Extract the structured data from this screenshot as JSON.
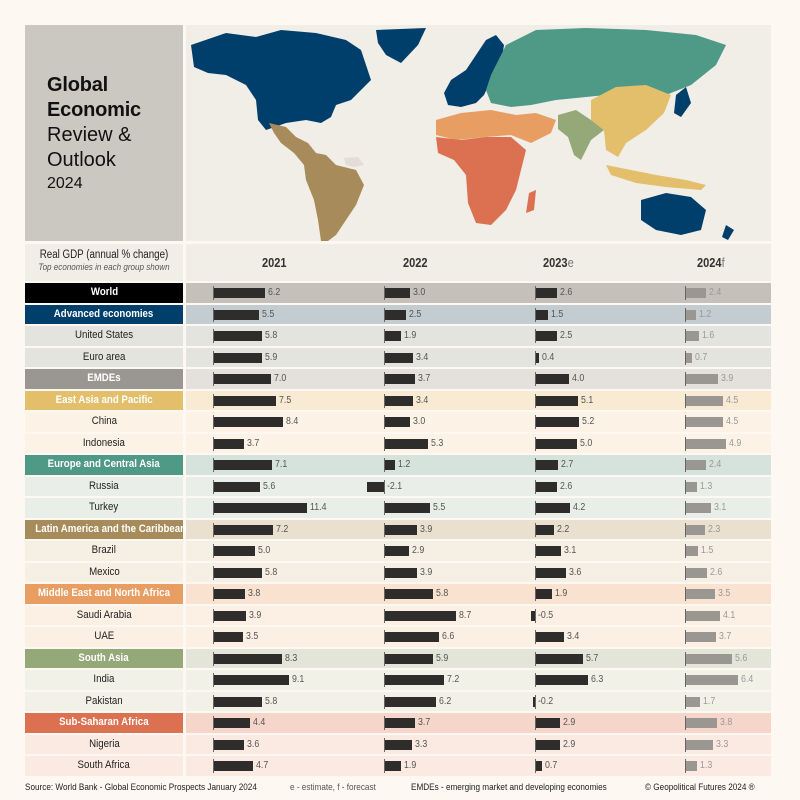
{
  "title": {
    "line1": "Global",
    "line2": "Economic",
    "line3": "Review &",
    "line4": "Outlook",
    "year": "2024"
  },
  "map": {
    "description": "World map colored by region group",
    "legend_colors": {
      "advanced_economies": "#003f6b",
      "europe_central_asia": "#4f9987",
      "east_asia_pacific": "#e3bf6c",
      "latin_america_caribbean": "#a88b5a",
      "middle_east_north_africa": "#e89d63",
      "south_asia": "#95a878",
      "sub_saharan_africa": "#dc7152",
      "no_data": "#e2ddd6",
      "ocean": "#f1ede7"
    }
  },
  "header": {
    "label_line1": "Real GDP (annual % change)",
    "label_line2": "Top economies in each group shown",
    "years": [
      {
        "year": "2021",
        "suffix": ""
      },
      {
        "year": "2022",
        "suffix": ""
      },
      {
        "year": "2023",
        "suffix": "e"
      },
      {
        "year": "2024",
        "suffix": "f"
      }
    ]
  },
  "chart_data": {
    "type": "bar",
    "title": "Global Economic Review & Outlook 2024",
    "subtitle": "Real GDP (annual % change) - Top economies in each group shown",
    "xlabel": "",
    "ylabel": "Real GDP (annual % change)",
    "categories": [
      "World",
      "Advanced economies",
      "United States",
      "Euro area",
      "EMDEs",
      "East Asia and Pacific",
      "China",
      "Indonesia",
      "Europe and Central Asia",
      "Russia",
      "Turkey",
      "Latin America and the Caribbean",
      "Brazil",
      "Mexico",
      "Middle East and North Africa",
      "Saudi Arabia",
      "UAE",
      "South Asia",
      "India",
      "Pakistan",
      "Sub-Saharan Africa",
      "Nigeria",
      "South Africa"
    ],
    "series": [
      {
        "name": "2021",
        "values": [
          6.2,
          5.5,
          5.8,
          5.9,
          7.0,
          7.5,
          8.4,
          3.7,
          7.1,
          5.6,
          11.4,
          7.2,
          5.0,
          5.8,
          3.8,
          3.9,
          3.5,
          8.3,
          9.1,
          5.8,
          4.4,
          3.6,
          4.7
        ]
      },
      {
        "name": "2022",
        "values": [
          3.0,
          2.5,
          1.9,
          3.4,
          3.7,
          3.4,
          3.0,
          5.3,
          1.2,
          -2.1,
          5.5,
          3.9,
          2.9,
          3.9,
          5.8,
          8.7,
          6.6,
          5.9,
          7.2,
          6.2,
          3.7,
          3.3,
          1.9
        ]
      },
      {
        "name": "2023e",
        "values": [
          2.6,
          1.5,
          2.5,
          0.4,
          4.0,
          5.1,
          5.2,
          5.0,
          2.7,
          2.6,
          4.2,
          2.2,
          3.1,
          3.6,
          1.9,
          -0.5,
          3.4,
          5.7,
          6.3,
          -0.2,
          2.9,
          2.9,
          0.7
        ]
      },
      {
        "name": "2024f",
        "values": [
          2.4,
          1.2,
          1.6,
          0.7,
          3.9,
          4.5,
          4.5,
          4.9,
          2.4,
          1.3,
          3.1,
          2.3,
          1.5,
          2.6,
          3.5,
          4.1,
          3.7,
          5.6,
          6.4,
          1.7,
          3.8,
          3.3,
          1.3
        ]
      }
    ],
    "legend": [
      "2021",
      "2022",
      "2023e (estimate)",
      "2024f (forecast)"
    ],
    "grid": false
  },
  "rows": [
    {
      "name": "World",
      "group": true,
      "label_bg": "#000000",
      "row_bg": "#c5c1ba",
      "values": [
        "6.2",
        "3.0",
        "2.6",
        "2.4"
      ]
    },
    {
      "name": "Advanced economies",
      "group": true,
      "label_bg": "#003f6b",
      "row_bg": "#c3ccd0",
      "values": [
        "5.5",
        "2.5",
        "1.5",
        "1.2"
      ]
    },
    {
      "name": "United States",
      "group": false,
      "label_bg": "#e3e3df",
      "row_bg": "#e3e3df",
      "values": [
        "5.8",
        "1.9",
        "2.5",
        "1.6"
      ]
    },
    {
      "name": "Euro area",
      "group": false,
      "label_bg": "#e3e3df",
      "row_bg": "#e3e3df",
      "values": [
        "5.9",
        "3.4",
        "0.4",
        "0.7"
      ]
    },
    {
      "name": "EMDEs",
      "group": true,
      "label_bg": "#9a9792",
      "row_bg": "#e4e0db",
      "values": [
        "7.0",
        "3.7",
        "4.0",
        "3.9"
      ]
    },
    {
      "name": "East Asia and Pacific",
      "group": true,
      "label_bg": "#e3bf6c",
      "row_bg": "#f8ead3",
      "values": [
        "7.5",
        "3.4",
        "5.1",
        "4.5"
      ]
    },
    {
      "name": "China",
      "group": false,
      "label_bg": "#fcf3e6",
      "row_bg": "#fcf3e6",
      "values": [
        "8.4",
        "3.0",
        "5.2",
        "4.5"
      ]
    },
    {
      "name": "Indonesia",
      "group": false,
      "label_bg": "#fcf3e6",
      "row_bg": "#fcf3e6",
      "values": [
        "3.7",
        "5.3",
        "5.0",
        "4.9"
      ]
    },
    {
      "name": "Europe and Central Asia",
      "group": true,
      "label_bg": "#4f9987",
      "row_bg": "#d6e2dc",
      "values": [
        "7.1",
        "1.2",
        "2.7",
        "2.4"
      ]
    },
    {
      "name": "Russia",
      "group": false,
      "label_bg": "#eaeee8",
      "row_bg": "#eaeee8",
      "values": [
        "5.6",
        "-2.1",
        "2.6",
        "1.3"
      ]
    },
    {
      "name": "Turkey",
      "group": false,
      "label_bg": "#eaeee8",
      "row_bg": "#eaeee8",
      "values": [
        "11.4",
        "5.5",
        "4.2",
        "3.1"
      ]
    },
    {
      "name": "Latin America and the Caribbean",
      "group": true,
      "label_bg": "#a88b5a",
      "row_bg": "#e9e0cf",
      "values": [
        "7.2",
        "3.9",
        "2.2",
        "2.3"
      ]
    },
    {
      "name": "Brazil",
      "group": false,
      "label_bg": "#f5efe4",
      "row_bg": "#f5efe4",
      "values": [
        "5.0",
        "2.9",
        "3.1",
        "1.5"
      ]
    },
    {
      "name": "Mexico",
      "group": false,
      "label_bg": "#f5efe4",
      "row_bg": "#f5efe4",
      "values": [
        "5.8",
        "3.9",
        "3.6",
        "2.6"
      ]
    },
    {
      "name": "Middle East and North Africa",
      "group": true,
      "label_bg": "#e89d63",
      "row_bg": "#f9e2cf",
      "values": [
        "3.8",
        "5.8",
        "1.9",
        "3.5"
      ]
    },
    {
      "name": "Saudi Arabia",
      "group": false,
      "label_bg": "#fcefe4",
      "row_bg": "#fcefe4",
      "values": [
        "3.9",
        "8.7",
        "-0.5",
        "4.1"
      ]
    },
    {
      "name": "UAE",
      "group": false,
      "label_bg": "#fcefe4",
      "row_bg": "#fcefe4",
      "values": [
        "3.5",
        "6.6",
        "3.4",
        "3.7"
      ]
    },
    {
      "name": "South Asia",
      "group": true,
      "label_bg": "#95a878",
      "row_bg": "#e3e5d8",
      "values": [
        "8.3",
        "5.9",
        "5.7",
        "5.6"
      ]
    },
    {
      "name": "India",
      "group": false,
      "label_bg": "#f2f1e7",
      "row_bg": "#f2f1e7",
      "values": [
        "9.1",
        "7.2",
        "6.3",
        "6.4"
      ]
    },
    {
      "name": "Pakistan",
      "group": false,
      "label_bg": "#f2f1e7",
      "row_bg": "#f2f1e7",
      "values": [
        "5.8",
        "6.2",
        "-0.2",
        "1.7"
      ]
    },
    {
      "name": "Sub-Saharan Africa",
      "group": true,
      "label_bg": "#dc7152",
      "row_bg": "#f6d6ca",
      "values": [
        "4.4",
        "3.7",
        "2.9",
        "3.8"
      ]
    },
    {
      "name": "Nigeria",
      "group": false,
      "label_bg": "#faeae2",
      "row_bg": "#faeae2",
      "values": [
        "3.6",
        "3.3",
        "2.9",
        "3.3"
      ]
    },
    {
      "name": "South Africa",
      "group": false,
      "label_bg": "#faeae2",
      "row_bg": "#faeae2",
      "values": [
        "4.7",
        "1.9",
        "0.7",
        "1.3"
      ]
    }
  ],
  "footer": {
    "source": "Source: World Bank - Global Economic Prospects January 2024",
    "note": "e - estimate, f - forecast",
    "abbrev": "EMDEs - emerging market and developing economies",
    "copyright": "© Geopolitical Futures 2024 ®"
  }
}
